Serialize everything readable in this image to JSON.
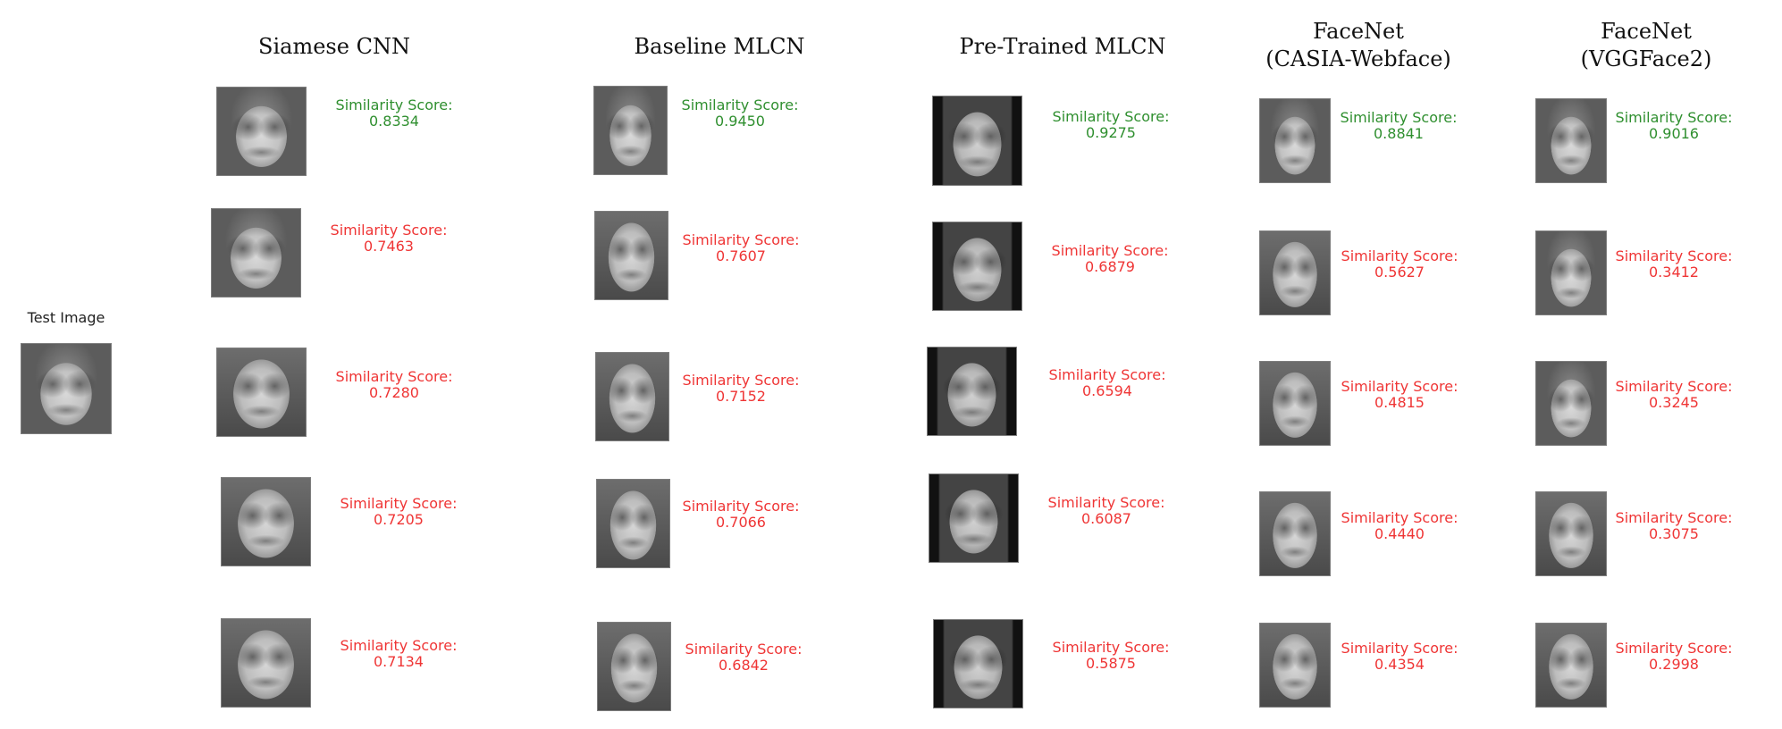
{
  "test": {
    "label": "Test Image"
  },
  "score_label": "Similarity Score:",
  "colors": {
    "match": "#2f8f2f",
    "nomatch": "#ef3535"
  },
  "columns": [
    {
      "title_lines": [
        "Siamese CNN"
      ],
      "results": [
        {
          "score": "0.8334",
          "match": true
        },
        {
          "score": "0.7463",
          "match": false
        },
        {
          "score": "0.7280",
          "match": false
        },
        {
          "score": "0.7205",
          "match": false
        },
        {
          "score": "0.7134",
          "match": false
        }
      ]
    },
    {
      "title_lines": [
        "Baseline MLCN"
      ],
      "results": [
        {
          "score": "0.9450",
          "match": true
        },
        {
          "score": "0.7607",
          "match": false
        },
        {
          "score": "0.7152",
          "match": false
        },
        {
          "score": "0.7066",
          "match": false
        },
        {
          "score": "0.6842",
          "match": false
        }
      ]
    },
    {
      "title_lines": [
        "Pre-Trained MLCN"
      ],
      "results": [
        {
          "score": "0.9275",
          "match": true
        },
        {
          "score": "0.6879",
          "match": false
        },
        {
          "score": "0.6594",
          "match": false
        },
        {
          "score": "0.6087",
          "match": false
        },
        {
          "score": "0.5875",
          "match": false
        }
      ]
    },
    {
      "title_lines": [
        "FaceNet",
        "(CASIA-Webface)"
      ],
      "results": [
        {
          "score": "0.8841",
          "match": true
        },
        {
          "score": "0.5627",
          "match": false
        },
        {
          "score": "0.4815",
          "match": false
        },
        {
          "score": "0.4440",
          "match": false
        },
        {
          "score": "0.4354",
          "match": false
        }
      ]
    },
    {
      "title_lines": [
        "FaceNet",
        "(VGGFace2)"
      ],
      "results": [
        {
          "score": "0.9016",
          "match": true
        },
        {
          "score": "0.3412",
          "match": false
        },
        {
          "score": "0.3245",
          "match": false
        },
        {
          "score": "0.3075",
          "match": false
        },
        {
          "score": "0.2998",
          "match": false
        }
      ]
    }
  ]
}
